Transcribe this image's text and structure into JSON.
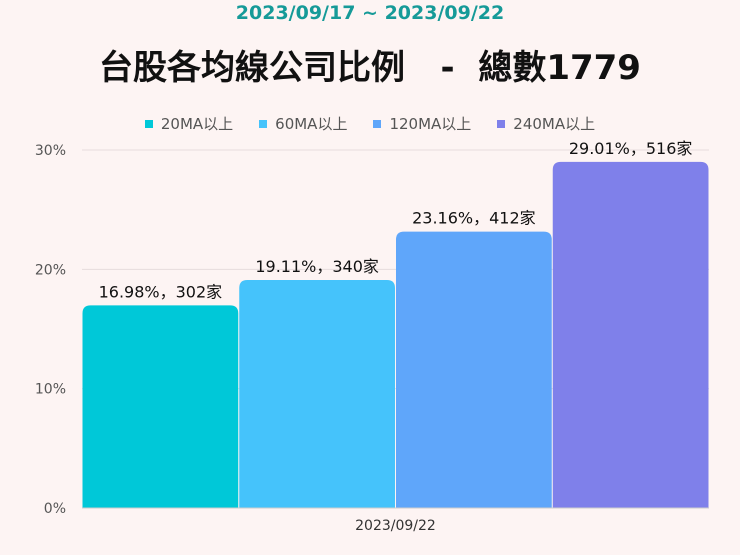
{
  "chart_data": {
    "type": "bar",
    "subtitle": "2023/09/17 ~ 2023/09/22",
    "title": "台股各均線公司比例   -  總數1779",
    "categories": [
      "2023/09/22"
    ],
    "series": [
      {
        "name": "20MA以上",
        "value": 16.98,
        "label": "16.98%，302家",
        "color": "#00c8d8"
      },
      {
        "name": "60MA以上",
        "value": 19.11,
        "label": "19.11%，340家",
        "color": "#45c3fb"
      },
      {
        "name": "120MA以上",
        "value": 23.16,
        "label": "23.16%，412家",
        "color": "#5fa6fa"
      },
      {
        "name": "240MA以上",
        "value": 29.01,
        "label": "29.01%，516家",
        "color": "#7f80ea"
      }
    ],
    "ylim": [
      0,
      30
    ],
    "yticks": [
      "0%",
      "10%",
      "20%",
      "30%"
    ],
    "grid": true,
    "legend": "top"
  }
}
